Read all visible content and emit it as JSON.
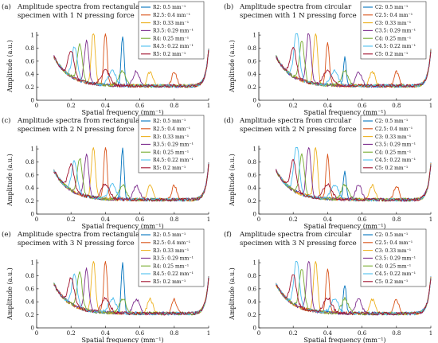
{
  "colors": {
    "s1": "#0072BD",
    "s2": "#D95319",
    "s3": "#EDB120",
    "s4": "#7E2F8E",
    "s5": "#77AC30",
    "s6": "#4DBEEE",
    "s7": "#A2142F"
  },
  "chart_data": [
    {
      "type": "line",
      "panel": "(a)",
      "title_lines": [
        "Amplitude spectra from rectangular",
        "specimen with 1 N pressing force"
      ],
      "xlabel": "Spatial frequency (mm⁻¹)",
      "ylabel": "Amplitude (a.u.)",
      "xlim": [
        0,
        1
      ],
      "ylim": [
        0,
        1.05
      ],
      "xticks": [
        "0",
        "0.2",
        "0.4",
        "0.6",
        "0.8",
        "1"
      ],
      "yticks": [
        "0",
        "0.2",
        "0.4",
        "0.6",
        "0.8",
        "1"
      ],
      "legend_position": "top-right",
      "series": [
        {
          "name": "R2:   0.5 mm⁻¹",
          "peak_x": 0.5,
          "peak_y": 0.95
        },
        {
          "name": "R2.5: 0.4 mm⁻¹",
          "peak_x": 0.4,
          "peak_y": 1.0
        },
        {
          "name": "R3:   0.33 mm⁻¹",
          "peak_x": 0.33,
          "peak_y": 1.0
        },
        {
          "name": "R3.5: 0.29 mm⁻¹",
          "peak_x": 0.29,
          "peak_y": 0.85
        },
        {
          "name": "R4:   0.25 mm⁻¹",
          "peak_x": 0.25,
          "peak_y": 0.8
        },
        {
          "name": "R4.5: 0.22 mm⁻¹",
          "peak_x": 0.22,
          "peak_y": 0.75
        },
        {
          "name": "R5:   0.2 mm⁻¹",
          "peak_x": 0.2,
          "peak_y": 0.7
        }
      ]
    },
    {
      "type": "line",
      "panel": "(b)",
      "title_lines": [
        "Amplitude spectra from circular",
        "specimen with 1 N pressing force"
      ],
      "xlabel": "Spatial frequency (mm⁻¹)",
      "ylabel": "Amplitude (a.u.)",
      "xlim": [
        0,
        1
      ],
      "ylim": [
        0,
        1.05
      ],
      "xticks": [
        "0",
        "0.2",
        "0.4",
        "0.6",
        "0.8",
        "1"
      ],
      "yticks": [
        "0",
        "0.2",
        "0.4",
        "0.6",
        "0.8",
        "1"
      ],
      "legend_position": "top-right",
      "series": [
        {
          "name": "C2:   0.5 mm⁻¹",
          "peak_x": 0.5,
          "peak_y": 0.6
        },
        {
          "name": "C2.5: 0.4 mm⁻¹",
          "peak_x": 0.4,
          "peak_y": 0.85
        },
        {
          "name": "C3:   0.33 mm⁻¹",
          "peak_x": 0.33,
          "peak_y": 1.0
        },
        {
          "name": "C3.5: 0.29 mm⁻¹",
          "peak_x": 0.29,
          "peak_y": 1.0
        },
        {
          "name": "C4:   0.25 mm⁻¹",
          "peak_x": 0.25,
          "peak_y": 0.85
        },
        {
          "name": "C4.5: 0.22 mm⁻¹",
          "peak_x": 0.22,
          "peak_y": 1.0
        },
        {
          "name": "C5:   0.2 mm⁻¹",
          "peak_x": 0.2,
          "peak_y": 0.75
        }
      ]
    },
    {
      "type": "line",
      "panel": "(c)",
      "title_lines": [
        "Amplitude spectra from rectangular",
        "specimen with 2 N pressing force"
      ],
      "xlabel": "Spatial frequency (mm⁻¹)",
      "ylabel": "Amplitude (a.u.)",
      "xlim": [
        0,
        1
      ],
      "ylim": [
        0,
        1.05
      ],
      "xticks": [
        "0",
        "0.2",
        "0.4",
        "0.6",
        "0.8",
        "1"
      ],
      "yticks": [
        "0",
        "0.2",
        "0.4",
        "0.6",
        "0.8",
        "1"
      ],
      "legend_position": "top-right",
      "series": [
        {
          "name": "R2:   0.5 mm⁻¹",
          "peak_x": 0.5,
          "peak_y": 0.95
        },
        {
          "name": "R2.5: 0.4 mm⁻¹",
          "peak_x": 0.4,
          "peak_y": 1.0
        },
        {
          "name": "R3:   0.33 mm⁻¹",
          "peak_x": 0.33,
          "peak_y": 1.0
        },
        {
          "name": "R3.5: 0.29 mm⁻¹",
          "peak_x": 0.29,
          "peak_y": 0.85
        },
        {
          "name": "R4:   0.25 mm⁻¹",
          "peak_x": 0.25,
          "peak_y": 0.8
        },
        {
          "name": "R4.5: 0.22 mm⁻¹",
          "peak_x": 0.22,
          "peak_y": 0.75
        },
        {
          "name": "R5:   0.2 mm⁻¹",
          "peak_x": 0.2,
          "peak_y": 0.7
        }
      ]
    },
    {
      "type": "line",
      "panel": "(d)",
      "title_lines": [
        "Amplitude spectra from circular",
        "specimen with 2 N pressing force"
      ],
      "xlabel": "Spatial frequency (mm⁻¹)",
      "ylabel": "Amplitude (a.u.)",
      "xlim": [
        0,
        1
      ],
      "ylim": [
        0,
        1.05
      ],
      "xticks": [
        "0",
        "0.2",
        "0.4",
        "0.6",
        "0.8",
        "1"
      ],
      "yticks": [
        "0",
        "0.2",
        "0.4",
        "0.6",
        "0.8",
        "1"
      ],
      "legend_position": "top-right",
      "series": [
        {
          "name": "C2:   0.5 mm⁻¹",
          "peak_x": 0.5,
          "peak_y": 0.6
        },
        {
          "name": "C2.5: 0.4 mm⁻¹",
          "peak_x": 0.4,
          "peak_y": 0.85
        },
        {
          "name": "C3:   0.33 mm⁻¹",
          "peak_x": 0.33,
          "peak_y": 1.0
        },
        {
          "name": "C3.5: 0.29 mm⁻¹",
          "peak_x": 0.29,
          "peak_y": 1.0
        },
        {
          "name": "C4:   0.25 mm⁻¹",
          "peak_x": 0.25,
          "peak_y": 0.85
        },
        {
          "name": "C4.5: 0.22 mm⁻¹",
          "peak_x": 0.22,
          "peak_y": 1.0
        },
        {
          "name": "C5:   0.2 mm⁻¹",
          "peak_x": 0.2,
          "peak_y": 0.75
        }
      ]
    },
    {
      "type": "line",
      "panel": "(e)",
      "title_lines": [
        "Amplitude spectra from rectangular",
        "specimen with 3 N pressing force"
      ],
      "xlabel": "Spatial frequency (mm⁻¹)",
      "ylabel": "Amplitude (a.u.)",
      "xlim": [
        0,
        1
      ],
      "ylim": [
        0,
        1.05
      ],
      "xticks": [
        "0",
        "0.2",
        "0.4",
        "0.6",
        "0.8",
        "1"
      ],
      "yticks": [
        "0",
        "0.2",
        "0.4",
        "0.6",
        "0.8",
        "1"
      ],
      "legend_position": "top-right",
      "series": [
        {
          "name": "R2:   0.5 mm⁻¹",
          "peak_x": 0.5,
          "peak_y": 0.95
        },
        {
          "name": "R2.5: 0.4 mm⁻¹",
          "peak_x": 0.4,
          "peak_y": 1.0
        },
        {
          "name": "R3:   0.33 mm⁻¹",
          "peak_x": 0.33,
          "peak_y": 1.0
        },
        {
          "name": "R3.5: 0.29 mm⁻¹",
          "peak_x": 0.29,
          "peak_y": 0.85
        },
        {
          "name": "R4:   0.25 mm⁻¹",
          "peak_x": 0.25,
          "peak_y": 0.8
        },
        {
          "name": "R4.5: 0.22 mm⁻¹",
          "peak_x": 0.22,
          "peak_y": 0.75
        },
        {
          "name": "R5:   0.2 mm⁻¹",
          "peak_x": 0.2,
          "peak_y": 0.7
        }
      ]
    },
    {
      "type": "line",
      "panel": "(f)",
      "title_lines": [
        "Amplitude spectra from circular",
        "specimen with 3 N pressing force"
      ],
      "xlabel": "Spatial frequency (mm⁻¹)",
      "ylabel": "Amplitude (a.u.)",
      "xlim": [
        0,
        1
      ],
      "ylim": [
        0,
        1.05
      ],
      "xticks": [
        "0",
        "0.2",
        "0.4",
        "0.6",
        "0.8",
        "1"
      ],
      "yticks": [
        "0",
        "0.2",
        "0.4",
        "0.6",
        "0.8",
        "1"
      ],
      "legend_position": "top-right",
      "series": [
        {
          "name": "C2:   0.5 mm⁻¹",
          "peak_x": 0.5,
          "peak_y": 0.6
        },
        {
          "name": "C2.5: 0.4 mm⁻¹",
          "peak_x": 0.4,
          "peak_y": 0.85
        },
        {
          "name": "C3:   0.33 mm⁻¹",
          "peak_x": 0.33,
          "peak_y": 1.0
        },
        {
          "name": "C3.5: 0.29 mm⁻¹",
          "peak_x": 0.29,
          "peak_y": 1.0
        },
        {
          "name": "C4:   0.25 mm⁻¹",
          "peak_x": 0.25,
          "peak_y": 0.85
        },
        {
          "name": "C4.5: 0.22 mm⁻¹",
          "peak_x": 0.22,
          "peak_y": 1.0
        },
        {
          "name": "C5:   0.2 mm⁻¹",
          "peak_x": 0.2,
          "peak_y": 0.75
        }
      ]
    }
  ]
}
